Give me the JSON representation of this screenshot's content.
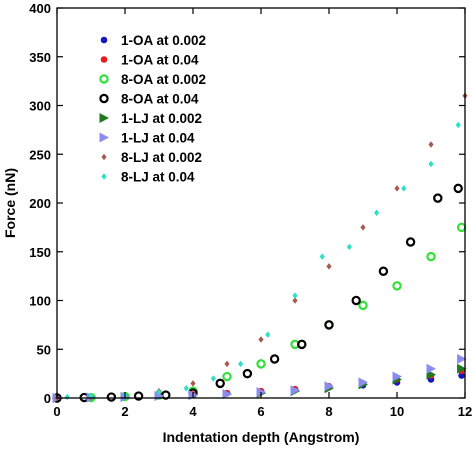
{
  "chart_data": {
    "type": "scatter",
    "title": "",
    "xlabel": "Indentation depth (Angstrom)",
    "ylabel": "Force (nN)",
    "xlim": [
      0,
      12
    ],
    "ylim": [
      0,
      400
    ],
    "xticks": [
      0,
      2,
      4,
      6,
      8,
      10,
      12
    ],
    "yticks": [
      0,
      50,
      100,
      150,
      200,
      250,
      300,
      350,
      400
    ],
    "grid": false,
    "legend_position": "top-left",
    "series": [
      {
        "name": "1-OA at 0.002",
        "color": "#1515c8",
        "marker": "dot",
        "x": [
          0,
          1,
          2,
          3,
          4,
          5,
          6,
          7,
          8,
          9,
          10,
          11,
          11.9
        ],
        "y": [
          0,
          0.5,
          1.5,
          2.5,
          3.5,
          5,
          7,
          9,
          11,
          13,
          16,
          19,
          23
        ]
      },
      {
        "name": "1-OA at 0.04",
        "color": "#e81c1c",
        "marker": "dot",
        "x": [
          0,
          1,
          2,
          3,
          4,
          5,
          6,
          7,
          8,
          9,
          10,
          11,
          11.9
        ],
        "y": [
          0,
          0.5,
          1.5,
          2.5,
          3.5,
          5,
          7,
          9,
          12,
          15,
          19,
          23,
          28
        ]
      },
      {
        "name": "8-OA at 0.002",
        "color": "#33e03a",
        "marker": "ring",
        "x": [
          0,
          1,
          2,
          3,
          4,
          5,
          6,
          7,
          8,
          9,
          10,
          11,
          11.9
        ],
        "y": [
          0,
          0.5,
          1.5,
          3,
          7,
          22,
          35,
          55,
          75,
          95,
          115,
          145,
          175
        ]
      },
      {
        "name": "8-OA at 0.04",
        "color": "#000000",
        "marker": "ring",
        "x": [
          0,
          0.8,
          1.6,
          2.4,
          3.2,
          4.0,
          4.8,
          5.6,
          6.4,
          7.2,
          8.0,
          8.8,
          9.6,
          10.4,
          11.2,
          11.8
        ],
        "y": [
          0,
          0.5,
          1,
          2,
          3,
          5,
          15,
          25,
          40,
          55,
          75,
          100,
          130,
          160,
          205,
          215
        ]
      },
      {
        "name": "1-LJ at 0.002",
        "color": "#1f7a1f",
        "marker": "triangle",
        "x": [
          0,
          1,
          2,
          3,
          4,
          5,
          6,
          7,
          8,
          9,
          10,
          11,
          11.9
        ],
        "y": [
          0,
          0.5,
          1,
          2,
          3,
          4,
          5,
          7,
          10,
          14,
          19,
          24,
          30
        ]
      },
      {
        "name": "1-LJ at 0.04",
        "color": "#8c8cf0",
        "marker": "triangle",
        "x": [
          0,
          1,
          2,
          3,
          4,
          5,
          6,
          7,
          8,
          9,
          10,
          11,
          11.9
        ],
        "y": [
          0,
          0.5,
          1,
          2,
          3,
          4,
          6,
          8,
          12,
          16,
          22,
          30,
          40
        ]
      },
      {
        "name": "8-LJ at 0.002",
        "color": "#a85a50",
        "marker": "diamond",
        "x": [
          0,
          1,
          2,
          3,
          4,
          5,
          6,
          7,
          8,
          9,
          10,
          11,
          12
        ],
        "y": [
          0,
          1,
          3,
          7,
          15,
          35,
          60,
          100,
          135,
          175,
          215,
          260,
          310
        ]
      },
      {
        "name": "8-LJ at 0.04",
        "color": "#2ee0c8",
        "marker": "diamond",
        "x": [
          0.3,
          1,
          2,
          3,
          3.8,
          4.6,
          5.4,
          6.2,
          7.0,
          7.8,
          8.6,
          9.4,
          10.2,
          11.0,
          11.8
        ],
        "y": [
          1,
          2,
          3,
          6,
          10,
          20,
          35,
          65,
          105,
          145,
          155,
          190,
          215,
          240,
          280
        ]
      }
    ]
  }
}
